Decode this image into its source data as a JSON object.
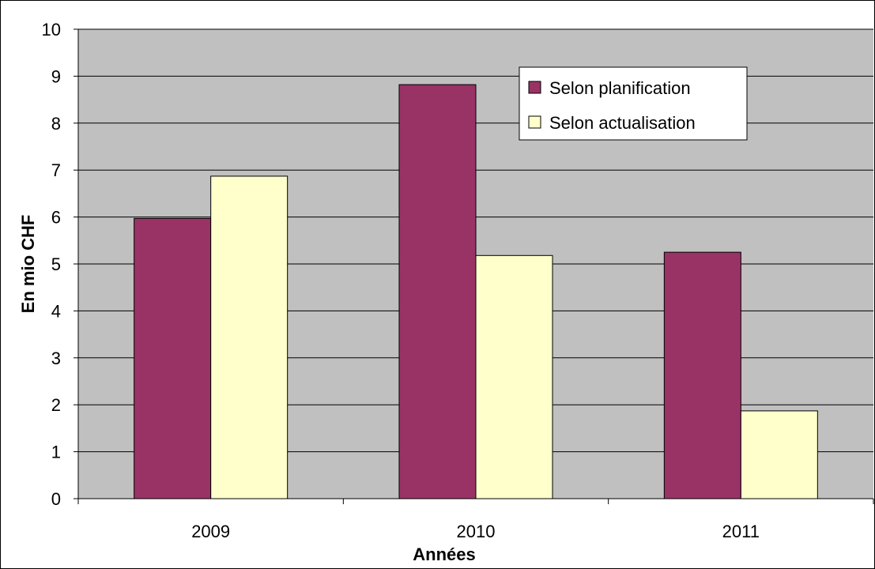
{
  "chart_data": {
    "type": "bar",
    "title": "",
    "xlabel": "Années",
    "ylabel": "En mio CHF",
    "categories": [
      "2009",
      "2010",
      "2011"
    ],
    "series": [
      {
        "name": "Selon planification",
        "values": [
          5.97,
          8.82,
          5.25
        ],
        "color": "#993366"
      },
      {
        "name": "Selon actualisation",
        "values": [
          6.87,
          5.18,
          1.87
        ],
        "color": "#ffffcc"
      }
    ],
    "ylim": [
      0,
      10
    ],
    "yticks": [
      0,
      1,
      2,
      3,
      4,
      5,
      6,
      7,
      8,
      9,
      10
    ],
    "yticks_labels": [
      "0",
      "1",
      "2",
      "3",
      "4",
      "5",
      "6",
      "7",
      "8",
      "9",
      "10"
    ],
    "grid": true,
    "plot_background": "#c0c0c0",
    "legend_position": "top-right"
  }
}
